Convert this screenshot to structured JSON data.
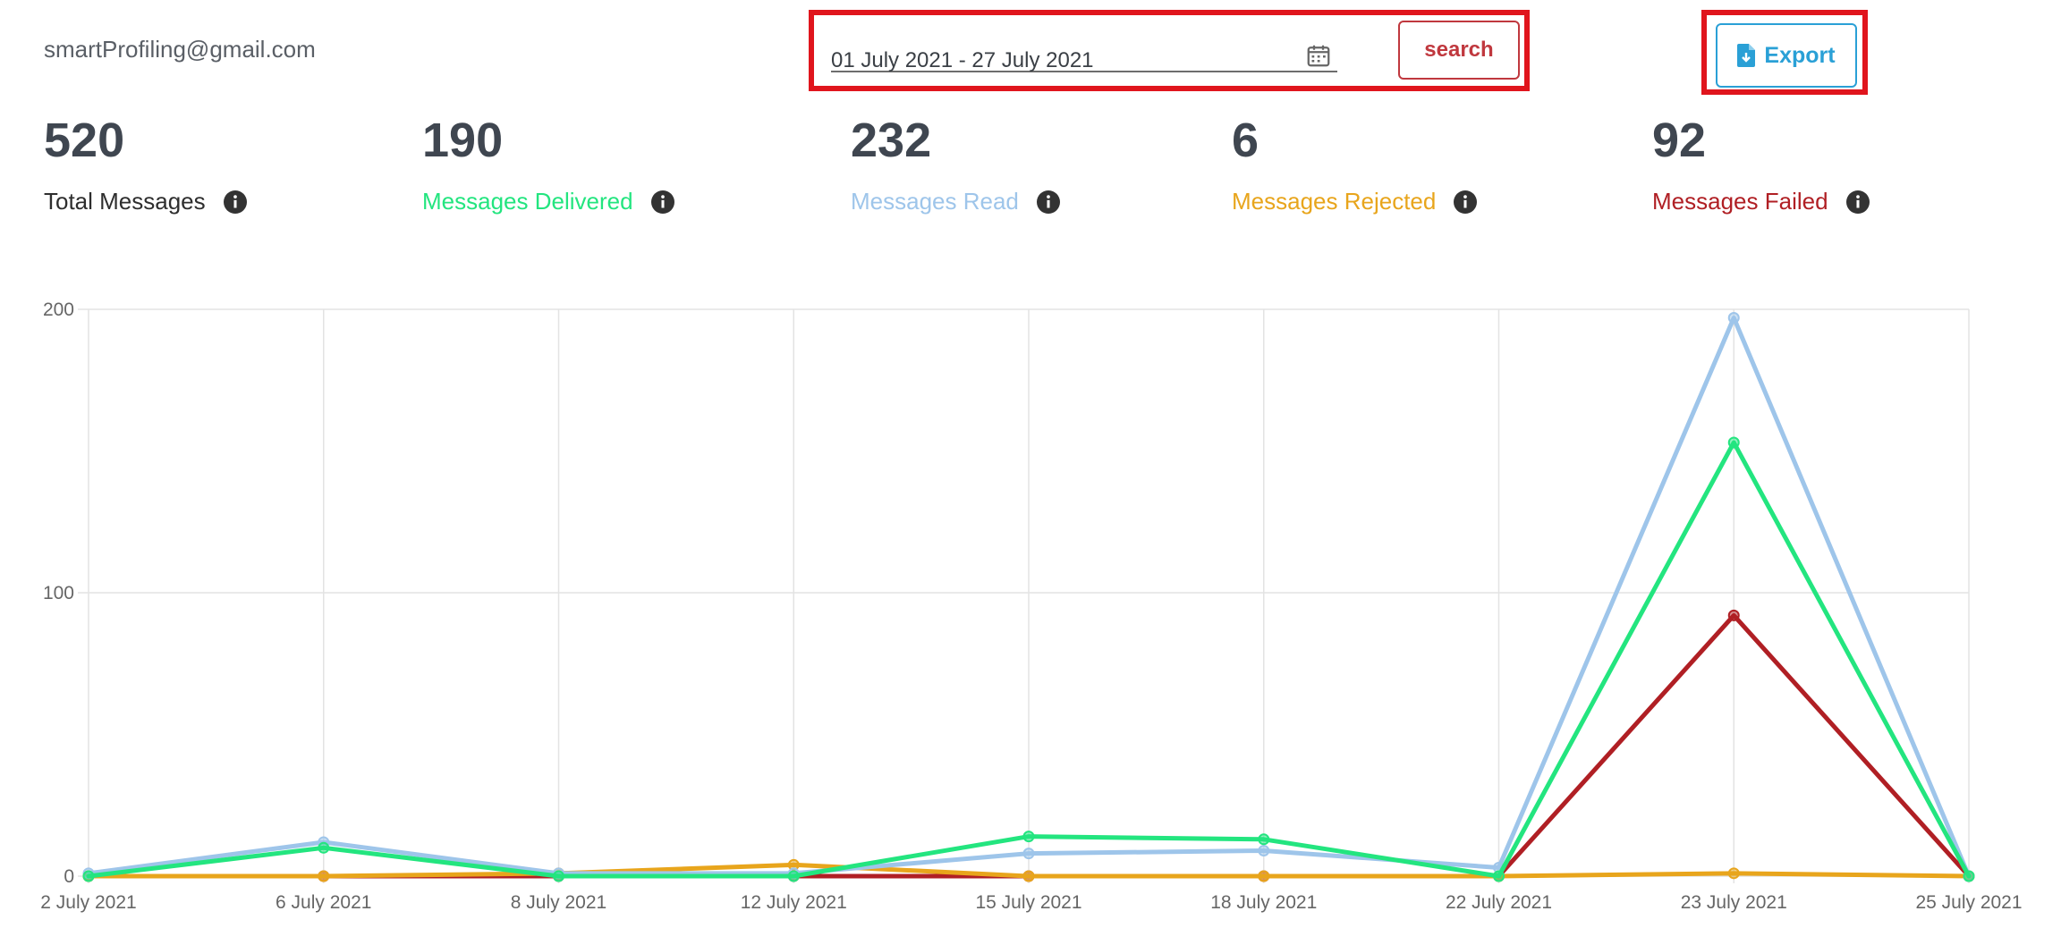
{
  "header": {
    "email": "smartProfiling@gmail.com",
    "date_range": "01 July 2021 - 27 July 2021",
    "search_label": "search",
    "export_label": "Export"
  },
  "stats": [
    {
      "value": "520",
      "label": "Total Messages",
      "color": "#2e2e2e"
    },
    {
      "value": "190",
      "label": "Messages Delivered",
      "color": "#23e57f"
    },
    {
      "value": "232",
      "label": "Messages Read",
      "color": "#9ec5ea"
    },
    {
      "value": "6",
      "label": "Messages Rejected",
      "color": "#e8a51c"
    },
    {
      "value": "92",
      "label": "Messages Failed",
      "color": "#b01f24"
    }
  ],
  "colors": {
    "highlight": "#e0151d",
    "search": "#c0383e",
    "export": "#2aa0d6"
  },
  "chart_data": {
    "type": "line",
    "categories": [
      "2 July 2021",
      "6 July 2021",
      "8 July 2021",
      "12 July 2021",
      "15 July 2021",
      "18 July 2021",
      "22 July 2021",
      "23 July 2021",
      "25 July 2021"
    ],
    "ylim": [
      0,
      200
    ],
    "yticks": [
      0,
      100,
      200
    ],
    "grid": true,
    "series": [
      {
        "color": "#b01f24",
        "values": [
          0,
          0,
          0,
          0,
          0,
          0,
          0,
          92,
          0
        ]
      },
      {
        "color": "#e8a51c",
        "values": [
          0,
          0,
          1,
          4,
          0,
          0,
          0,
          1,
          0
        ]
      },
      {
        "color": "#9ec5ea",
        "values": [
          1,
          12,
          1,
          1,
          8,
          9,
          3,
          197,
          0
        ]
      },
      {
        "color": "#23e57f",
        "values": [
          0,
          10,
          0,
          0,
          14,
          13,
          0,
          153,
          0
        ]
      }
    ]
  }
}
